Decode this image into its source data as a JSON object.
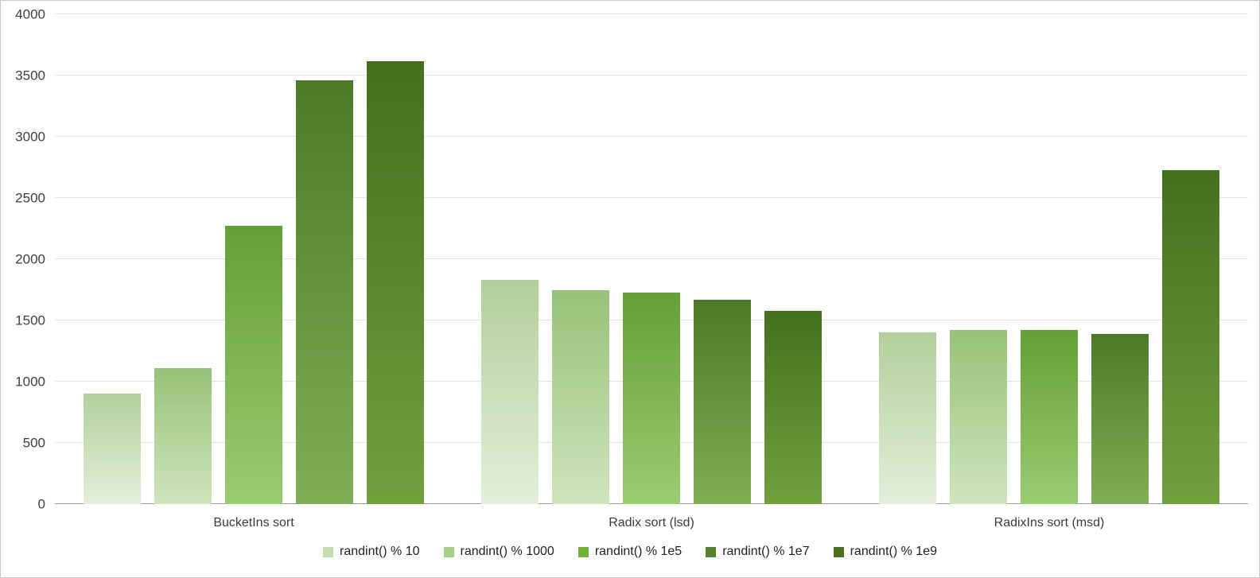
{
  "colors": {
    "background": "#ffffff",
    "border": "#c9c9c9",
    "gridline": "#e2e2e2",
    "axis_line": "#9a9a9a",
    "tick_text": "#3f3f3f",
    "legend_text": "#1f1f1f"
  },
  "chart_data": {
    "type": "bar",
    "title": "",
    "xlabel": "",
    "ylabel": "",
    "categories": [
      "BucketIns sort",
      "Radix sort (lsd)",
      "RadixIns sort (msd)"
    ],
    "series": [
      {
        "name": "randint() % 10",
        "values": [
          900,
          1830,
          1400
        ],
        "legend_color": "#c3ddae",
        "color_top": "#b2cf9a",
        "color_bottom": "#e3efda"
      },
      {
        "name": "randint() % 1000",
        "values": [
          1110,
          1750,
          1425
        ],
        "legend_color": "#a6cf87",
        "color_top": "#97c277",
        "color_bottom": "#cfe4bd"
      },
      {
        "name": "randint() % 1e5",
        "values": [
          2270,
          1730,
          1425
        ],
        "legend_color": "#70b33b",
        "color_top": "#649f37",
        "color_bottom": "#9bcc72"
      },
      {
        "name": "randint() % 1e7",
        "values": [
          3460,
          1670,
          1390
        ],
        "legend_color": "#55832d",
        "color_top": "#4d7a28",
        "color_bottom": "#81ad55"
      },
      {
        "name": "randint() % 1e9",
        "values": [
          3620,
          1580,
          2730
        ],
        "legend_color": "#497220",
        "color_top": "#43701d",
        "color_bottom": "#72a03f"
      }
    ],
    "ylim": [
      0,
      4000
    ],
    "yticks": [
      0,
      500,
      1000,
      1500,
      2000,
      2500,
      3000,
      3500,
      4000
    ],
    "grid": "horizontal",
    "legend_position": "bottom-center"
  }
}
